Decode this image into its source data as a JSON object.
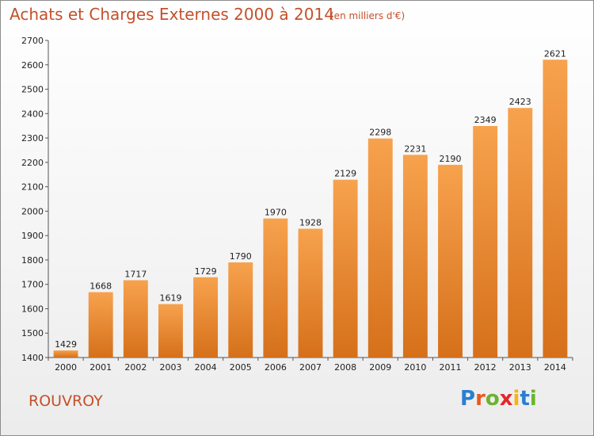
{
  "chart_data": {
    "type": "bar",
    "title": "Achats et Charges Externes 2000 à 2014",
    "subtitle": "(en milliers d'€)",
    "categories": [
      "2000",
      "2001",
      "2002",
      "2003",
      "2004",
      "2005",
      "2006",
      "2007",
      "2008",
      "2009",
      "2010",
      "2011",
      "2012",
      "2013",
      "2014"
    ],
    "values": [
      1429,
      1668,
      1717,
      1619,
      1729,
      1790,
      1970,
      1928,
      2129,
      2298,
      2231,
      2190,
      2349,
      2423,
      2621
    ],
    "ylim": [
      1400,
      2700
    ],
    "yticks": [
      1400,
      1500,
      1600,
      1700,
      1800,
      1900,
      2000,
      2100,
      2200,
      2300,
      2400,
      2500,
      2600,
      2700
    ],
    "grid": false,
    "bar_color": "#f2913a",
    "bar_color_dark": "#d97415"
  },
  "commune": "ROUVROY",
  "brand": {
    "letters": [
      "P",
      "r",
      "o",
      "x",
      "i",
      "t",
      "i"
    ],
    "colors": [
      "#2a7fd0",
      "#e9591e",
      "#6bb32e",
      "#e3262b",
      "#f2b418",
      "#2a7fd0",
      "#6bb32e"
    ]
  },
  "colors": {
    "title": "#c4502a"
  }
}
